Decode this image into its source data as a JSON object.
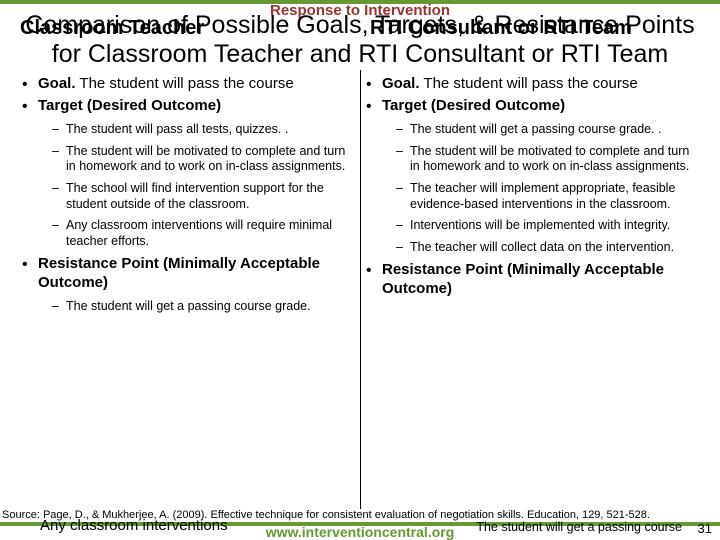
{
  "colors": {
    "accent_green": "#669933",
    "accent_red": "#993333",
    "text": "#000000",
    "background": "#ffffff"
  },
  "header": {
    "tag": "Response to Intervention",
    "title": "Comparison of Possible Goals, Targets, & Resistance Points for Classroom Teacher and RTI Consultant or RTI Team"
  },
  "left": {
    "heading": "Classroom Teacher",
    "goal_label": "Goal.",
    "goal_text": " The student will pass the course",
    "target_label": "Target (Desired Outcome)",
    "target_points": [
      "The student will pass all tests, quizzes. .",
      "The student will be motivated to complete and turn in homework and to work on in-class assignments.",
      "The school will find intervention support for the student outside of the classroom.",
      "Any classroom interventions will require minimal teacher efforts."
    ],
    "resistance_label": "Resistance Point (Minimally Acceptable Outcome)",
    "resistance_points": [
      "The student will get a passing course grade."
    ]
  },
  "right": {
    "heading": "RTI Consultant or RTI Team",
    "goal_label": "Goal.",
    "goal_text": " The student will pass the course",
    "target_label": "Target (Desired Outcome)",
    "target_points": [
      "The student will get a passing course grade. .",
      "The student will be motivated to complete and turn in homework and to work on in-class assignments.",
      "The teacher will implement appropriate, feasible evidence-based interventions in the classroom.",
      "Interventions will be implemented with integrity.",
      "The teacher will collect data on the intervention."
    ],
    "resistance_label": "Resistance Point (Minimally Acceptable Outcome)"
  },
  "footer": {
    "source": "Source: Page, D., & Mukherjee, A. (2009). Effective technique for consistent evaluation of negotiation skills. Education, 129, 521-528.",
    "url": "www.interventioncentral.org",
    "page": "31",
    "overlay_left": "Any classroom interventions",
    "overlay_right": "The student will get a passing course"
  }
}
